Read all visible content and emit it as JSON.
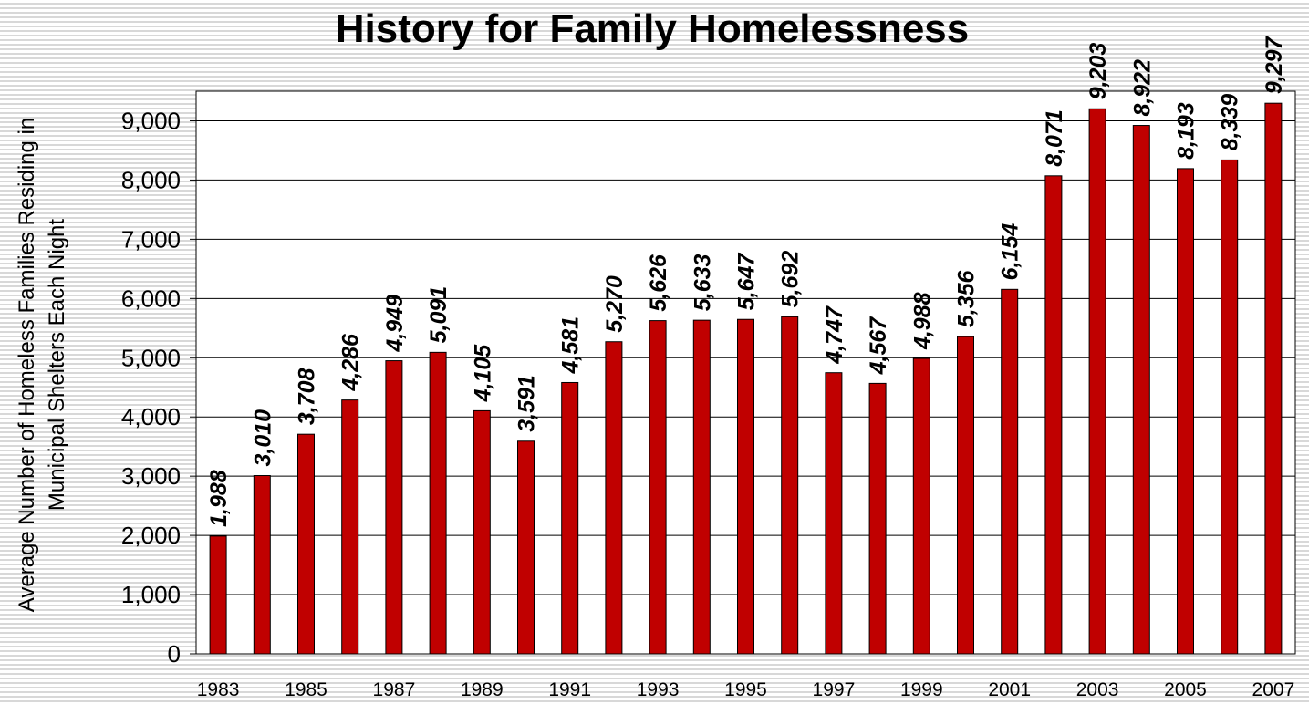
{
  "chart_data": {
    "type": "bar",
    "title": "History for Family Homelessness",
    "y_label": [
      "Average Number of Homeless Families Residing in",
      "Municipal Shelters  Each Night"
    ],
    "categories": [
      "1983",
      null,
      "1985",
      null,
      "1987",
      null,
      "1989",
      null,
      "1991",
      null,
      "1993",
      null,
      "1995",
      null,
      "1997",
      null,
      "1999",
      null,
      "2001",
      null,
      "2003",
      null,
      "2005",
      null,
      "2007"
    ],
    "values": [
      1988,
      3010,
      3708,
      4286,
      4949,
      5091,
      4105,
      3591,
      4581,
      5270,
      5626,
      5633,
      5647,
      5692,
      4747,
      4567,
      4988,
      5356,
      6154,
      8071,
      9203,
      8922,
      8193,
      8339,
      9297
    ],
    "value_labels": [
      "1,988",
      "3,010",
      "3,708",
      "4,286",
      "4,949",
      "5,091",
      "4,105",
      "3,591",
      "4,581",
      "5,270",
      "5,626",
      "5,633",
      "5,647",
      "5,692",
      "4,747",
      "4,567",
      "4,988",
      "5,356",
      "6,154",
      "8,071",
      "9,203",
      "8,922",
      "8,193",
      "8,339",
      "9,297"
    ],
    "color": "#c00000",
    "ylim": [
      0,
      9500
    ],
    "yticks": [
      0,
      {
        "value": 1000,
        "label": "1,000"
      },
      {
        "value": 2000,
        "label": "2,000"
      },
      {
        "value": 3000,
        "label": "3,000"
      },
      {
        "value": 4000,
        "label": "4,000"
      },
      {
        "value": 5000,
        "label": "5,000"
      },
      {
        "value": 6000,
        "label": "6,000"
      },
      {
        "value": 7000,
        "label": "7,000"
      },
      {
        "value": 8000,
        "label": "8,000"
      },
      {
        "value": 9000,
        "label": "9,000"
      }
    ],
    "grid": true
  }
}
